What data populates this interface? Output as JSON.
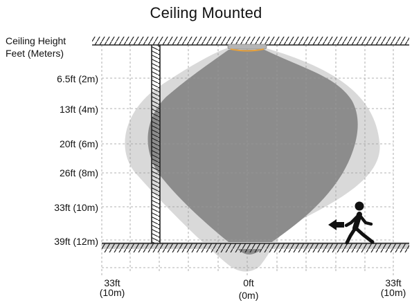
{
  "title": "Ceiling Mounted",
  "axis_caption_line1": "Ceiling Height",
  "axis_caption_line2": "Feet (Meters)",
  "height_labels": [
    "6.5ft (2m)",
    "13ft (4m)",
    "20ft (6m)",
    "26ft (8m)",
    "33ft (10m)",
    "39ft (12m)"
  ],
  "distance_labels": [
    {
      "top": "33ft",
      "bottom": "(10m)"
    },
    {
      "top": "0ft",
      "bottom": "(0m)"
    },
    {
      "top": "33ft",
      "bottom": "(10m)"
    }
  ],
  "colors": {
    "outer_zone": "#d9d9d9",
    "inner_zone": "#8c8c8c",
    "sensor_ring": "#e8a13a",
    "grid": "#999999"
  },
  "icons": [
    "person-walking-icon",
    "arrow-left-icon"
  ]
}
